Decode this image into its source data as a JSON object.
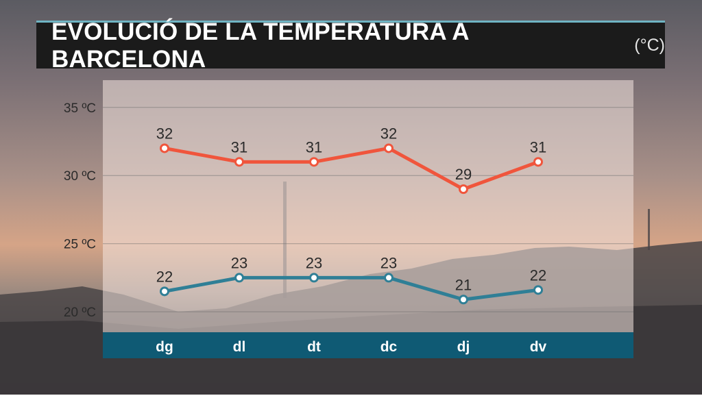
{
  "title": {
    "text": "EVOLUCIÓ DE LA TEMPERATURA A BARCELONA",
    "unit": "(°C)"
  },
  "colors": {
    "max_series": "#f0553c",
    "min_series": "#2f7f96",
    "axis_band": "#0f5a74",
    "title_bg": "#1b1b1b",
    "title_accent": "#6fb5c4"
  },
  "chart_data": {
    "type": "line",
    "title": "EVOLUCIÓ DE LA TEMPERATURA A BARCELONA",
    "xlabel": "",
    "ylabel": "",
    "categories": [
      "dg",
      "dl",
      "dt",
      "dc",
      "dj",
      "dv"
    ],
    "y_ticks": [
      20,
      25,
      30,
      35
    ],
    "y_tick_labels": [
      "20 ºC",
      "25 ºC",
      "30 ºC",
      "35 ºC"
    ],
    "ylim": [
      18.5,
      37
    ],
    "grid": true,
    "legend": "none",
    "series": [
      {
        "values": [
          32,
          31,
          31,
          32,
          29,
          31
        ],
        "labels": [
          "32",
          "31",
          "31",
          "32",
          "29",
          "31"
        ]
      },
      {
        "values": [
          21.5,
          22.5,
          22.5,
          22.5,
          20.9,
          21.6
        ],
        "labels": [
          "22",
          "23",
          "23",
          "23",
          "21",
          "22"
        ]
      }
    ]
  }
}
